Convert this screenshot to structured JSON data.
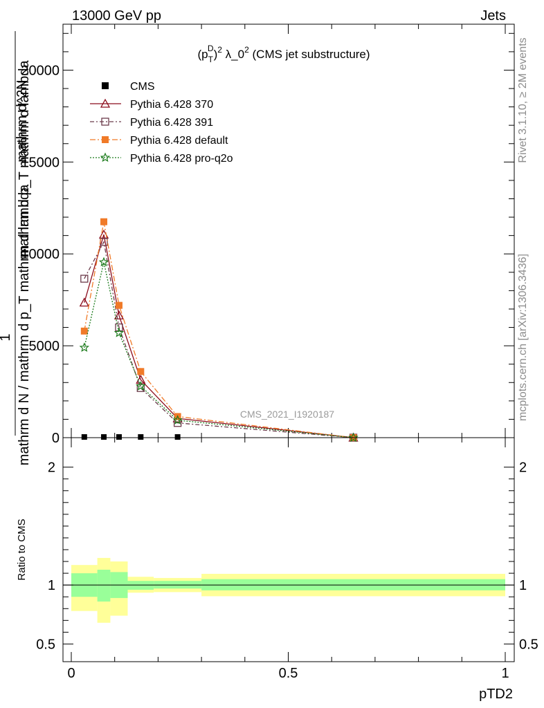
{
  "header": {
    "left": "13000 GeV pp",
    "right": "Jets"
  },
  "side_labels": {
    "rivet": "Rivet 3.1.10, ≥ 2M events",
    "site": "mcplots.cern.ch [arXiv:1306.3436]"
  },
  "watermark": "CMS_2021_I1920187",
  "chart_data": [
    {
      "type": "line",
      "title": "(p_T^D)^2 λ_0^2 (CMS jet substructure)",
      "title_parts": {
        "base": "(p",
        "sub": "T",
        "sup1": "D",
        "sup2": "2",
        "rest": " λ_0",
        "sup3": "2",
        "tail": " (CMS jet substructure)"
      },
      "ylabel": {
        "main": "mathrm d p_T mathrm d lambda",
        "denominator": "mathrm d N / mathrm d p_T mathrm d lambda",
        "numerator_top": "mathrm d^2N",
        "one": "1"
      },
      "xlim": [
        0,
        1
      ],
      "ylim": [
        0,
        22500
      ],
      "yticks": [
        0,
        5000,
        10000,
        15000,
        20000
      ],
      "ytick_labels": [
        "0",
        "5000",
        "10000",
        "15000",
        "20000"
      ],
      "legend_position": "top-left",
      "series": [
        {
          "name": "CMS",
          "color": "#000000",
          "marker": "square-filled",
          "x": [
            0.03,
            0.075,
            0.11,
            0.16,
            0.245,
            0.65
          ],
          "y": [
            0,
            0,
            0,
            0,
            0,
            0
          ]
        },
        {
          "name": "Pythia 6.428 370",
          "color": "#8b0a1a",
          "marker": "triangle-open",
          "dash": "",
          "x": [
            0.03,
            0.075,
            0.11,
            0.16,
            0.245,
            0.65
          ],
          "y": [
            7350,
            11050,
            6650,
            3150,
            1050,
            0
          ]
        },
        {
          "name": "Pythia 6.428 391",
          "color": "#6b3a4a",
          "marker": "square-open",
          "dash": "6,3,2,3",
          "x": [
            0.03,
            0.075,
            0.11,
            0.16,
            0.245,
            0.65
          ],
          "y": [
            8650,
            10650,
            6000,
            2700,
            800,
            0
          ]
        },
        {
          "name": "Pythia 6.428 default",
          "color": "#f07a28",
          "marker": "square-filled",
          "dash": "8,3,2,3",
          "x": [
            0.03,
            0.075,
            0.11,
            0.16,
            0.245,
            0.65
          ],
          "y": [
            5800,
            11750,
            7200,
            3600,
            1150,
            0
          ]
        },
        {
          "name": "Pythia 6.428 pro-q2o",
          "color": "#1a7a1a",
          "marker": "star",
          "dash": "2,2",
          "x": [
            0.03,
            0.075,
            0.11,
            0.16,
            0.245,
            0.65
          ],
          "y": [
            4900,
            9550,
            5700,
            2800,
            950,
            0
          ]
        }
      ]
    },
    {
      "type": "area",
      "ylabel": "Ratio to CMS",
      "xlabel": "pTD2",
      "xlim": [
        -0.02,
        1.02
      ],
      "ylim": [
        0.35,
        2.25
      ],
      "xticks": [
        0,
        0.5,
        1
      ],
      "xtick_labels": [
        "0",
        "0.5",
        "1"
      ],
      "yticks": [
        0.5,
        1,
        2
      ],
      "ytick_labels": [
        "0.5",
        "1",
        "2"
      ],
      "reference_line": 1,
      "bands": {
        "inner_color": "#99ff99",
        "outer_color": "#ffff99",
        "bins": [
          {
            "x0": 0.0,
            "x1": 0.06,
            "inner": [
              0.9,
              1.1
            ],
            "outer": [
              0.78,
              1.17
            ]
          },
          {
            "x0": 0.06,
            "x1": 0.09,
            "inner": [
              0.86,
              1.13
            ],
            "outer": [
              0.68,
              1.23
            ]
          },
          {
            "x0": 0.09,
            "x1": 0.13,
            "inner": [
              0.89,
              1.11
            ],
            "outer": [
              0.74,
              1.2
            ]
          },
          {
            "x0": 0.13,
            "x1": 0.19,
            "inner": [
              0.96,
              1.035
            ],
            "outer": [
              0.935,
              1.07
            ]
          },
          {
            "x0": 0.19,
            "x1": 0.3,
            "inner": [
              0.97,
              1.035
            ],
            "outer": [
              0.94,
              1.06
            ]
          },
          {
            "x0": 0.3,
            "x1": 1.0,
            "inner": [
              0.955,
              1.05
            ],
            "outer": [
              0.905,
              1.095
            ]
          }
        ]
      }
    }
  ]
}
